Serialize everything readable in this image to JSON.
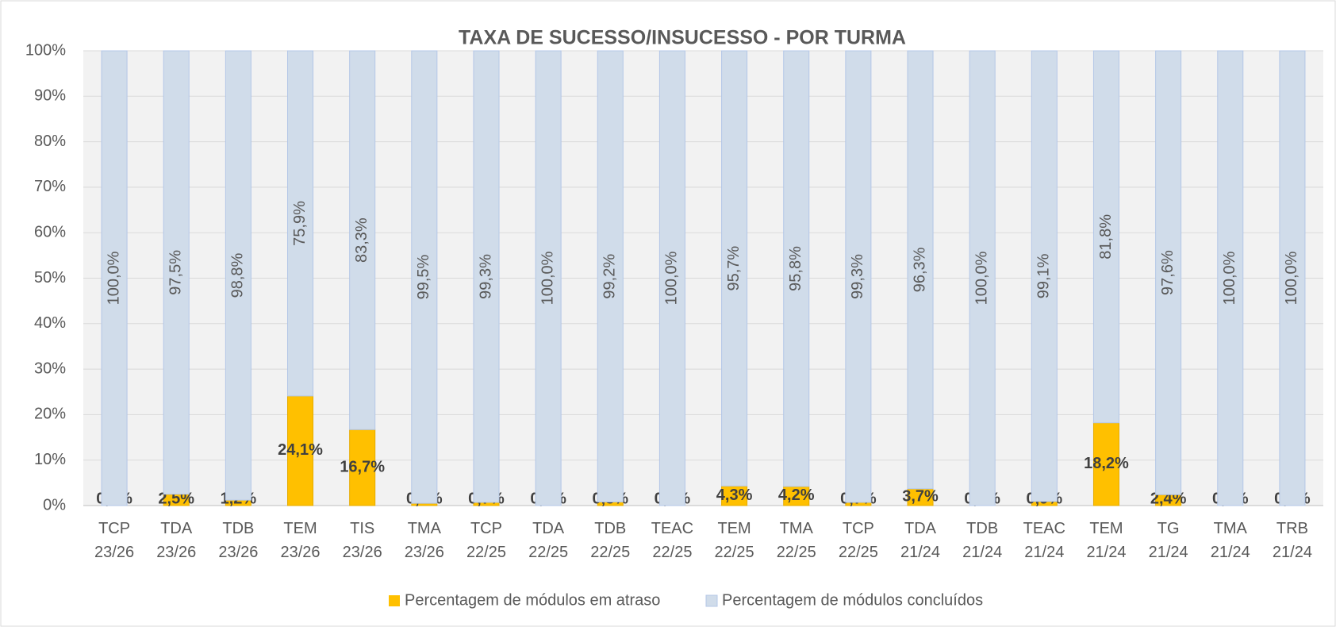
{
  "chart_data": {
    "type": "stacked_bar",
    "title": "TAXA DE SUCESSO/INSUCESSO - POR TURMA",
    "categories": [
      "TCP 23/26",
      "TDA 23/26",
      "TDB 23/26",
      "TEM 23/26",
      "TIS 23/26",
      "TMA 23/26",
      "TCP 22/25",
      "TDA 22/25",
      "TDB 22/25",
      "TEAC 22/25",
      "TEM 22/25",
      "TMA 22/25",
      "TCP 22/25",
      "TDA 21/24",
      "TDB 21/24",
      "TEAC 21/24",
      "TEM 21/24",
      "TG 21/24",
      "TMA 21/24",
      "TRB 21/24"
    ],
    "series": [
      {
        "name": "Percentagem de módulos em atraso",
        "color": "#ffc000",
        "values": [
          0.0,
          2.5,
          1.2,
          24.1,
          16.7,
          0.5,
          0.7,
          0.0,
          0.8,
          0.0,
          4.3,
          4.2,
          0.7,
          3.7,
          0.0,
          0.9,
          18.2,
          2.4,
          0.0,
          0.0
        ],
        "value_labels": [
          "0,0%",
          "2,5%",
          "1,2%",
          "24,1%",
          "16,7%",
          "0,5%",
          "0,7%",
          "0,0%",
          "0,8%",
          "0,0%",
          "4,3%",
          "4,2%",
          "0,7%",
          "3,7%",
          "0,0%",
          "0,9%",
          "18,2%",
          "2,4%",
          "0,0%",
          "0,0%"
        ]
      },
      {
        "name": "Percentagem de módulos concluídos",
        "color": "#d0dcea",
        "values": [
          100.0,
          97.5,
          98.8,
          75.9,
          83.3,
          99.5,
          99.3,
          100.0,
          99.2,
          100.0,
          95.7,
          95.8,
          99.3,
          96.3,
          100.0,
          99.1,
          81.8,
          97.6,
          100.0,
          100.0
        ],
        "value_labels": [
          "100,0%",
          "97,5%",
          "98,8%",
          "75,9%",
          "83,3%",
          "99,5%",
          "99,3%",
          "100,0%",
          "99,2%",
          "100,0%",
          "95,7%",
          "95,8%",
          "99,3%",
          "96,3%",
          "100,0%",
          "99,1%",
          "81,8%",
          "97,6%",
          "100,0%",
          "100,0%"
        ]
      }
    ],
    "ylim": [
      0,
      100
    ],
    "yticks": [
      {
        "value": 0,
        "label": "0%"
      },
      {
        "value": 10,
        "label": "10%"
      },
      {
        "value": 20,
        "label": "20%"
      },
      {
        "value": 30,
        "label": "30%"
      },
      {
        "value": 40,
        "label": "40%"
      },
      {
        "value": 50,
        "label": "50%"
      },
      {
        "value": 60,
        "label": "60%"
      },
      {
        "value": 70,
        "label": "70%"
      },
      {
        "value": 80,
        "label": "80%"
      },
      {
        "value": 90,
        "label": "90%"
      },
      {
        "value": 100,
        "label": "100%"
      }
    ],
    "grid": true,
    "legend": "bottom"
  }
}
